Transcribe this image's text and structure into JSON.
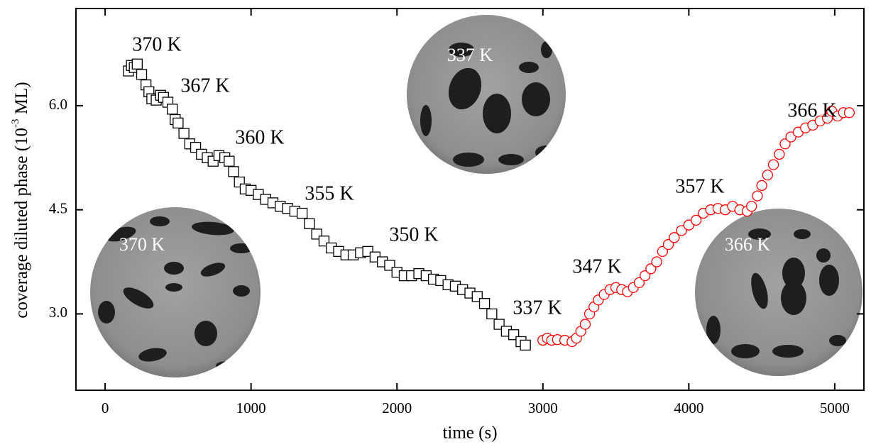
{
  "chart_data": {
    "type": "scatter",
    "x_label": "time (s)",
    "y_label": [
      "coverage diluted phase (10",
      "-3",
      " ML)"
    ],
    "xlim": [
      -200,
      5200
    ],
    "xticks": [
      0,
      1000,
      2000,
      3000,
      4000,
      5000
    ],
    "ylim": [
      1.9,
      7.4
    ],
    "yticks": [
      {
        "value": 3,
        "label": "3.0"
      },
      {
        "value": 4.5,
        "label": "4.5"
      },
      {
        "value": 6,
        "label": "6.0"
      }
    ],
    "series": [
      {
        "marker": "square",
        "color": "#000000",
        "x": [
          160,
          180,
          200,
          220,
          250,
          280,
          300,
          320,
          350,
          380,
          400,
          430,
          460,
          480,
          500,
          540,
          580,
          620,
          660,
          700,
          740,
          780,
          820,
          850,
          880,
          920,
          960,
          1000,
          1050,
          1100,
          1150,
          1200,
          1250,
          1300,
          1350,
          1400,
          1450,
          1500,
          1550,
          1600,
          1650,
          1700,
          1750,
          1800,
          1850,
          1900,
          1950,
          2000,
          2050,
          2100,
          2150,
          2200,
          2250,
          2300,
          2350,
          2400,
          2450,
          2500,
          2550,
          2600,
          2650,
          2700,
          2750,
          2800,
          2850,
          2880
        ],
        "values": [
          6.5,
          6.58,
          6.55,
          6.6,
          6.45,
          6.3,
          6.2,
          6.1,
          6.08,
          6.15,
          6.12,
          6.05,
          5.95,
          5.8,
          5.75,
          5.6,
          5.45,
          5.4,
          5.3,
          5.25,
          5.2,
          5.28,
          5.25,
          5.2,
          5.05,
          4.9,
          4.8,
          4.78,
          4.72,
          4.65,
          4.6,
          4.55,
          4.52,
          4.48,
          4.45,
          4.3,
          4.15,
          4.05,
          3.95,
          3.9,
          3.85,
          3.85,
          3.88,
          3.9,
          3.82,
          3.75,
          3.7,
          3.6,
          3.55,
          3.55,
          3.58,
          3.55,
          3.5,
          3.48,
          3.42,
          3.4,
          3.35,
          3.3,
          3.25,
          3.15,
          3.0,
          2.85,
          2.75,
          2.7,
          2.6,
          2.55
        ]
      },
      {
        "marker": "circle",
        "color": "#ff0000",
        "x": [
          3000,
          3030,
          3060,
          3100,
          3150,
          3200,
          3230,
          3260,
          3290,
          3320,
          3350,
          3380,
          3420,
          3460,
          3500,
          3540,
          3580,
          3620,
          3660,
          3700,
          3740,
          3780,
          3820,
          3860,
          3900,
          3950,
          4000,
          4050,
          4100,
          4150,
          4200,
          4250,
          4300,
          4350,
          4400,
          4430,
          4470,
          4500,
          4540,
          4580,
          4620,
          4660,
          4700,
          4750,
          4800,
          4850,
          4900,
          4950,
          4980,
          5020,
          5060,
          5100
        ],
        "values": [
          2.62,
          2.65,
          2.62,
          2.63,
          2.62,
          2.6,
          2.65,
          2.75,
          2.85,
          3.0,
          3.1,
          3.2,
          3.28,
          3.35,
          3.38,
          3.35,
          3.32,
          3.38,
          3.45,
          3.55,
          3.65,
          3.75,
          3.9,
          4.0,
          4.1,
          4.2,
          4.28,
          4.35,
          4.45,
          4.5,
          4.52,
          4.5,
          4.55,
          4.5,
          4.48,
          4.55,
          4.7,
          4.85,
          5.0,
          5.15,
          5.3,
          5.45,
          5.55,
          5.62,
          5.68,
          5.72,
          5.78,
          5.82,
          5.92,
          5.85,
          5.9,
          5.9
        ]
      }
    ],
    "annotations": [
      "370 K",
      "367 K",
      "360 K",
      "355 K",
      "350 K",
      "337 K",
      "347 K",
      "357 K",
      "366 K"
    ],
    "inset_labels": [
      "370 K",
      "337 K",
      "366 K"
    ]
  }
}
